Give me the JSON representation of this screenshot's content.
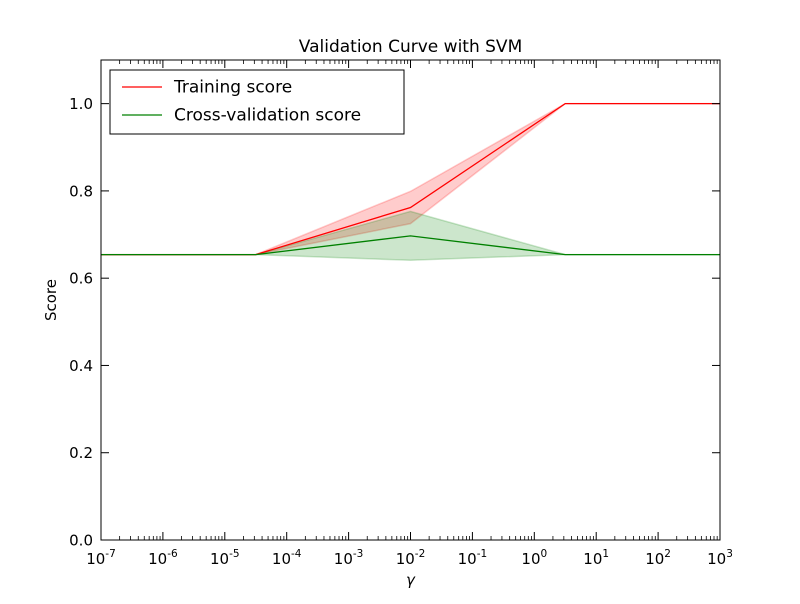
{
  "chart_data": {
    "type": "line",
    "title": "Validation Curve with SVM",
    "xlabel": "γ",
    "ylabel": "Score",
    "xscale": "log",
    "xlim": [
      1e-07,
      1000
    ],
    "ylim": [
      0.0,
      1.1
    ],
    "xticks": [
      {
        "value": 1e-07,
        "base": "10",
        "exp": "-7"
      },
      {
        "value": 1e-06,
        "base": "10",
        "exp": "-6"
      },
      {
        "value": 1e-05,
        "base": "10",
        "exp": "-5"
      },
      {
        "value": 0.0001,
        "base": "10",
        "exp": "-4"
      },
      {
        "value": 0.001,
        "base": "10",
        "exp": "-3"
      },
      {
        "value": 0.01,
        "base": "10",
        "exp": "-2"
      },
      {
        "value": 0.1,
        "base": "10",
        "exp": "-1"
      },
      {
        "value": 1.0,
        "base": "10",
        "exp": "0"
      },
      {
        "value": 10.0,
        "base": "10",
        "exp": "1"
      },
      {
        "value": 100.0,
        "base": "10",
        "exp": "2"
      },
      {
        "value": 1000.0,
        "base": "10",
        "exp": "3"
      }
    ],
    "yticks": [
      {
        "value": 0.0,
        "label": "0.0"
      },
      {
        "value": 0.2,
        "label": "0.2"
      },
      {
        "value": 0.4,
        "label": "0.4"
      },
      {
        "value": 0.6,
        "label": "0.6"
      },
      {
        "value": 0.8,
        "label": "0.8"
      },
      {
        "value": 1.0,
        "label": "1.0"
      }
    ],
    "x": [
      1e-07,
      3.16e-05,
      0.01,
      3.16,
      1000
    ],
    "series": [
      {
        "name": "Training score",
        "color": "#ff0000",
        "fill_color": "#ff0000",
        "values": [
          0.654,
          0.654,
          0.762,
          1.0,
          1.0
        ],
        "lower": [
          0.654,
          0.654,
          0.725,
          1.0,
          1.0
        ],
        "upper": [
          0.654,
          0.654,
          0.799,
          1.0,
          1.0
        ]
      },
      {
        "name": "Cross-validation score",
        "color": "#008000",
        "fill_color": "#008000",
        "values": [
          0.654,
          0.654,
          0.697,
          0.654,
          0.654
        ],
        "lower": [
          0.654,
          0.654,
          0.641,
          0.654,
          0.654
        ],
        "upper": [
          0.654,
          0.654,
          0.753,
          0.654,
          0.654
        ]
      }
    ],
    "legend": {
      "location": "upper-left"
    },
    "grid": false
  }
}
